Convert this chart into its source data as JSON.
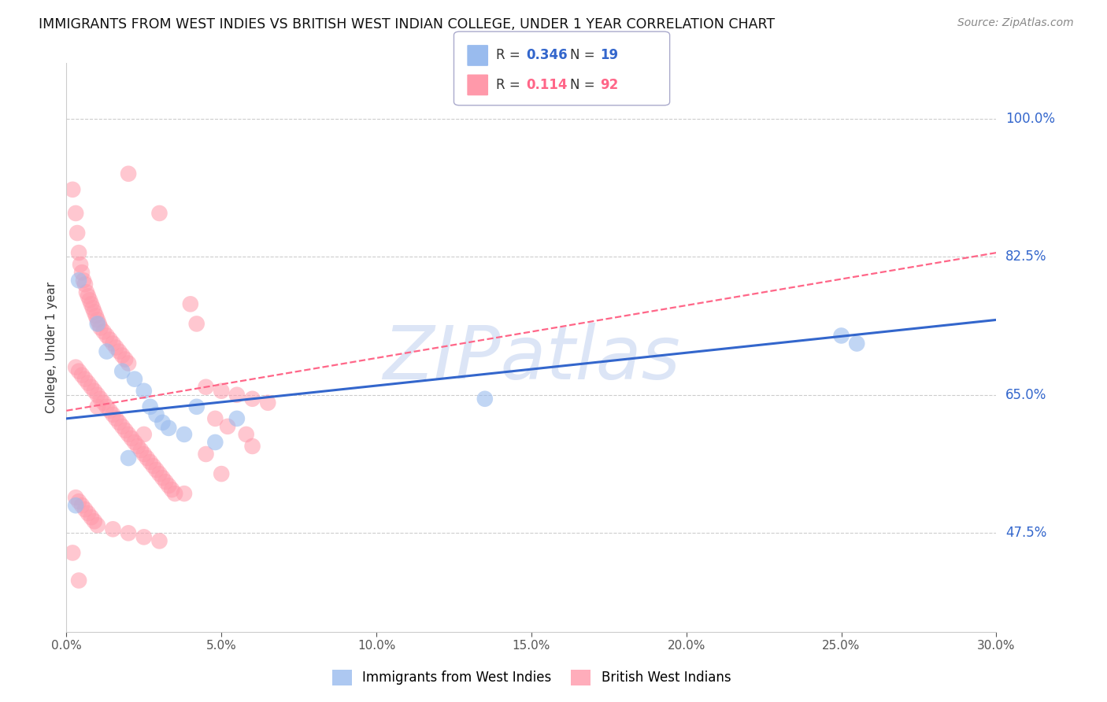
{
  "title": "IMMIGRANTS FROM WEST INDIES VS BRITISH WEST INDIAN COLLEGE, UNDER 1 YEAR CORRELATION CHART",
  "source": "Source: ZipAtlas.com",
  "ylabel": "College, Under 1 year",
  "xlabel_ticks": [
    "0.0%",
    "5.0%",
    "10.0%",
    "15.0%",
    "20.0%",
    "25.0%",
    "30.0%"
  ],
  "xlabel_vals": [
    0.0,
    5.0,
    10.0,
    15.0,
    20.0,
    25.0,
    30.0
  ],
  "ytick_labels": [
    "47.5%",
    "65.0%",
    "82.5%",
    "100.0%"
  ],
  "ytick_vals": [
    47.5,
    65.0,
    82.5,
    100.0
  ],
  "xlim": [
    0.0,
    30.0
  ],
  "ylim": [
    35.0,
    107.0
  ],
  "legend_label1": "Immigrants from West Indies",
  "legend_label2": "British West Indians",
  "blue_color": "#99BBEE",
  "pink_color": "#FF99AA",
  "blue_scatter": [
    [
      0.4,
      79.5
    ],
    [
      1.0,
      74.0
    ],
    [
      1.3,
      70.5
    ],
    [
      1.8,
      68.0
    ],
    [
      2.2,
      67.0
    ],
    [
      2.5,
      65.5
    ],
    [
      2.7,
      63.5
    ],
    [
      2.9,
      62.5
    ],
    [
      3.1,
      61.5
    ],
    [
      3.3,
      60.8
    ],
    [
      3.8,
      60.0
    ],
    [
      4.2,
      63.5
    ],
    [
      4.8,
      59.0
    ],
    [
      5.5,
      62.0
    ],
    [
      13.5,
      64.5
    ],
    [
      25.0,
      72.5
    ],
    [
      25.5,
      71.5
    ],
    [
      0.3,
      51.0
    ],
    [
      2.0,
      57.0
    ]
  ],
  "pink_scatter": [
    [
      0.2,
      91.0
    ],
    [
      0.3,
      88.0
    ],
    [
      0.35,
      85.5
    ],
    [
      0.4,
      83.0
    ],
    [
      0.45,
      81.5
    ],
    [
      0.5,
      80.5
    ],
    [
      0.55,
      79.5
    ],
    [
      0.6,
      79.0
    ],
    [
      0.65,
      78.0
    ],
    [
      0.7,
      77.5
    ],
    [
      0.75,
      77.0
    ],
    [
      0.8,
      76.5
    ],
    [
      0.85,
      76.0
    ],
    [
      0.9,
      75.5
    ],
    [
      0.95,
      75.0
    ],
    [
      1.0,
      74.5
    ],
    [
      1.05,
      74.0
    ],
    [
      1.1,
      73.5
    ],
    [
      1.2,
      73.0
    ],
    [
      1.3,
      72.5
    ],
    [
      1.4,
      72.0
    ],
    [
      1.5,
      71.5
    ],
    [
      1.6,
      71.0
    ],
    [
      1.7,
      70.5
    ],
    [
      1.8,
      70.0
    ],
    [
      1.9,
      69.5
    ],
    [
      2.0,
      69.0
    ],
    [
      0.3,
      68.5
    ],
    [
      0.4,
      68.0
    ],
    [
      0.5,
      67.5
    ],
    [
      0.6,
      67.0
    ],
    [
      0.7,
      66.5
    ],
    [
      0.8,
      66.0
    ],
    [
      0.9,
      65.5
    ],
    [
      1.0,
      65.0
    ],
    [
      1.1,
      64.5
    ],
    [
      1.2,
      64.0
    ],
    [
      1.3,
      63.5
    ],
    [
      1.4,
      63.0
    ],
    [
      1.5,
      62.5
    ],
    [
      1.6,
      62.0
    ],
    [
      1.7,
      61.5
    ],
    [
      1.8,
      61.0
    ],
    [
      1.9,
      60.5
    ],
    [
      2.0,
      60.0
    ],
    [
      2.1,
      59.5
    ],
    [
      2.2,
      59.0
    ],
    [
      2.3,
      58.5
    ],
    [
      2.4,
      58.0
    ],
    [
      2.5,
      57.5
    ],
    [
      2.6,
      57.0
    ],
    [
      2.7,
      56.5
    ],
    [
      2.8,
      56.0
    ],
    [
      2.9,
      55.5
    ],
    [
      3.0,
      55.0
    ],
    [
      3.1,
      54.5
    ],
    [
      3.2,
      54.0
    ],
    [
      3.3,
      53.5
    ],
    [
      3.4,
      53.0
    ],
    [
      3.5,
      52.5
    ],
    [
      0.3,
      52.0
    ],
    [
      0.4,
      51.5
    ],
    [
      0.5,
      51.0
    ],
    [
      0.6,
      50.5
    ],
    [
      0.7,
      50.0
    ],
    [
      0.8,
      49.5
    ],
    [
      0.9,
      49.0
    ],
    [
      1.0,
      48.5
    ],
    [
      1.5,
      48.0
    ],
    [
      2.0,
      47.5
    ],
    [
      2.5,
      47.0
    ],
    [
      3.0,
      46.5
    ],
    [
      4.5,
      66.0
    ],
    [
      5.0,
      65.5
    ],
    [
      5.5,
      65.0
    ],
    [
      6.0,
      64.5
    ],
    [
      6.5,
      64.0
    ],
    [
      4.8,
      62.0
    ],
    [
      5.2,
      61.0
    ],
    [
      5.8,
      60.0
    ],
    [
      2.0,
      93.0
    ],
    [
      3.0,
      88.0
    ],
    [
      4.0,
      76.5
    ],
    [
      4.2,
      74.0
    ],
    [
      1.0,
      63.5
    ],
    [
      2.5,
      60.0
    ],
    [
      0.2,
      45.0
    ],
    [
      0.4,
      41.5
    ],
    [
      4.5,
      57.5
    ],
    [
      5.0,
      55.0
    ],
    [
      3.8,
      52.5
    ],
    [
      6.0,
      58.5
    ]
  ],
  "blue_line_color": "#3366CC",
  "pink_line_color": "#FF6688",
  "pink_line_style": "--",
  "watermark": "ZIPatlas",
  "watermark_color": "#BBCCEE",
  "background_color": "#FFFFFF",
  "grid_color": "#CCCCCC",
  "axis_color": "#CCCCCC",
  "title_color": "#111111",
  "source_color": "#888888",
  "ylabel_color": "#333333",
  "xtick_color": "#555555",
  "ytick_right_color": "#3366CC",
  "legend_box_color": "#DDDDFF",
  "legend_border_color": "#AAAACC"
}
